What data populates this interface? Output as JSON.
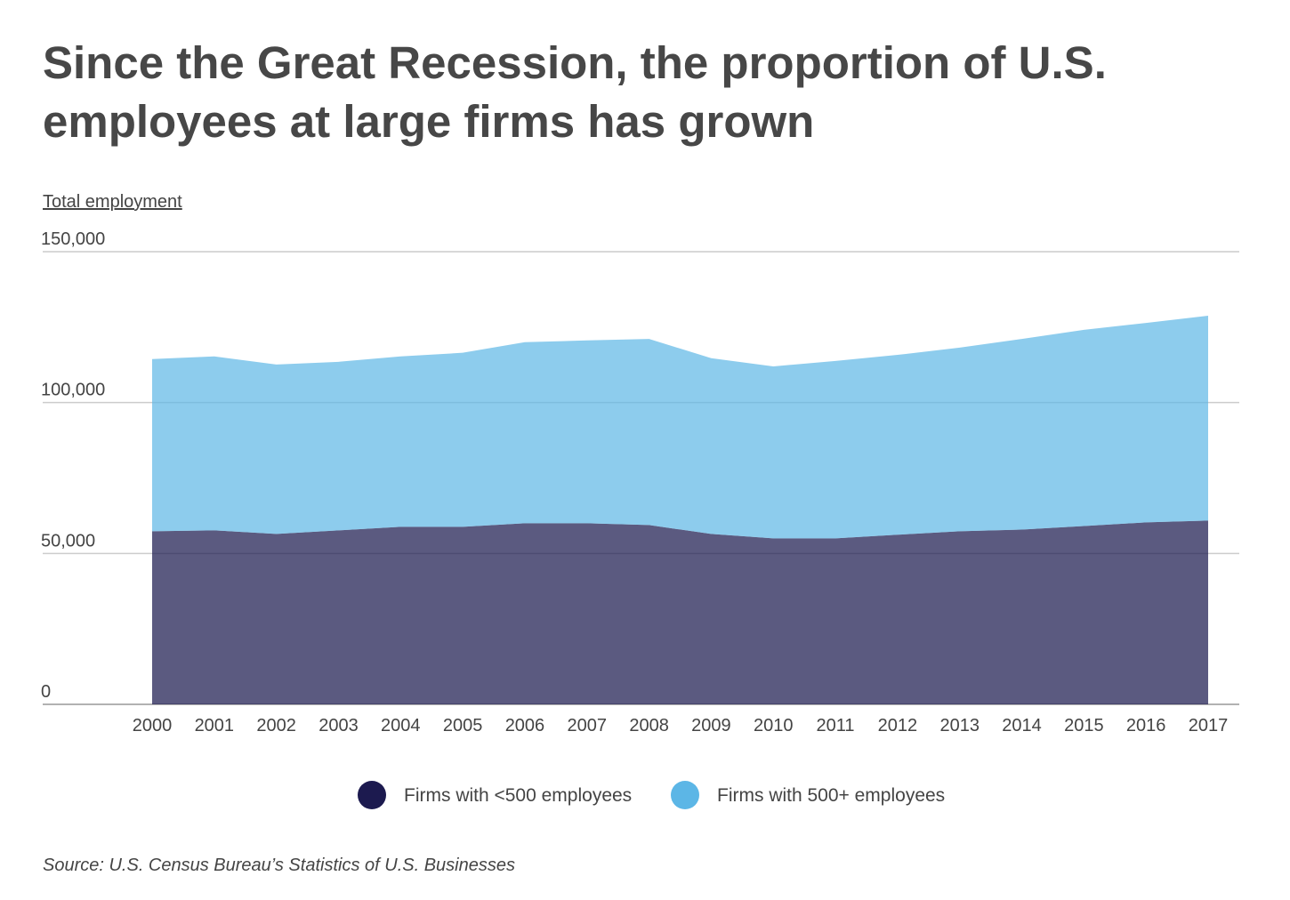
{
  "chart_data": {
    "type": "area",
    "stacked": true,
    "title": "Since the Great Recession, the proportion of U.S. employees at large firms has grown",
    "ylabel": "Total employment",
    "xlabel": "",
    "ylim": [
      0,
      150000
    ],
    "yticks": [
      0,
      50000,
      100000,
      150000
    ],
    "ytick_labels": [
      "0",
      "50,000",
      "100,000",
      "150,000"
    ],
    "grid": true,
    "legend_position": "bottom",
    "categories": [
      "2000",
      "2001",
      "2002",
      "2003",
      "2004",
      "2005",
      "2006",
      "2007",
      "2008",
      "2009",
      "2010",
      "2011",
      "2012",
      "2013",
      "2014",
      "2015",
      "2016",
      "2017"
    ],
    "series": [
      {
        "name": "Firms with <500 employees",
        "color": "#1c1a4f",
        "values": [
          57350,
          57650,
          56470,
          57650,
          58820,
          58820,
          60000,
          60000,
          59400,
          56470,
          55000,
          55000,
          56200,
          57350,
          57900,
          59100,
          60300,
          60900
        ]
      },
      {
        "name": "Firms with 500+ employees",
        "color": "#5cb6e6",
        "values": [
          57050,
          57650,
          56130,
          55850,
          56480,
          57680,
          60000,
          60600,
          61700,
          58230,
          57000,
          58800,
          59600,
          60850,
          63200,
          65000,
          66100,
          67900
        ]
      }
    ],
    "source": "Source:  U.S. Census Bureau’s Statistics of U.S. Businesses"
  }
}
